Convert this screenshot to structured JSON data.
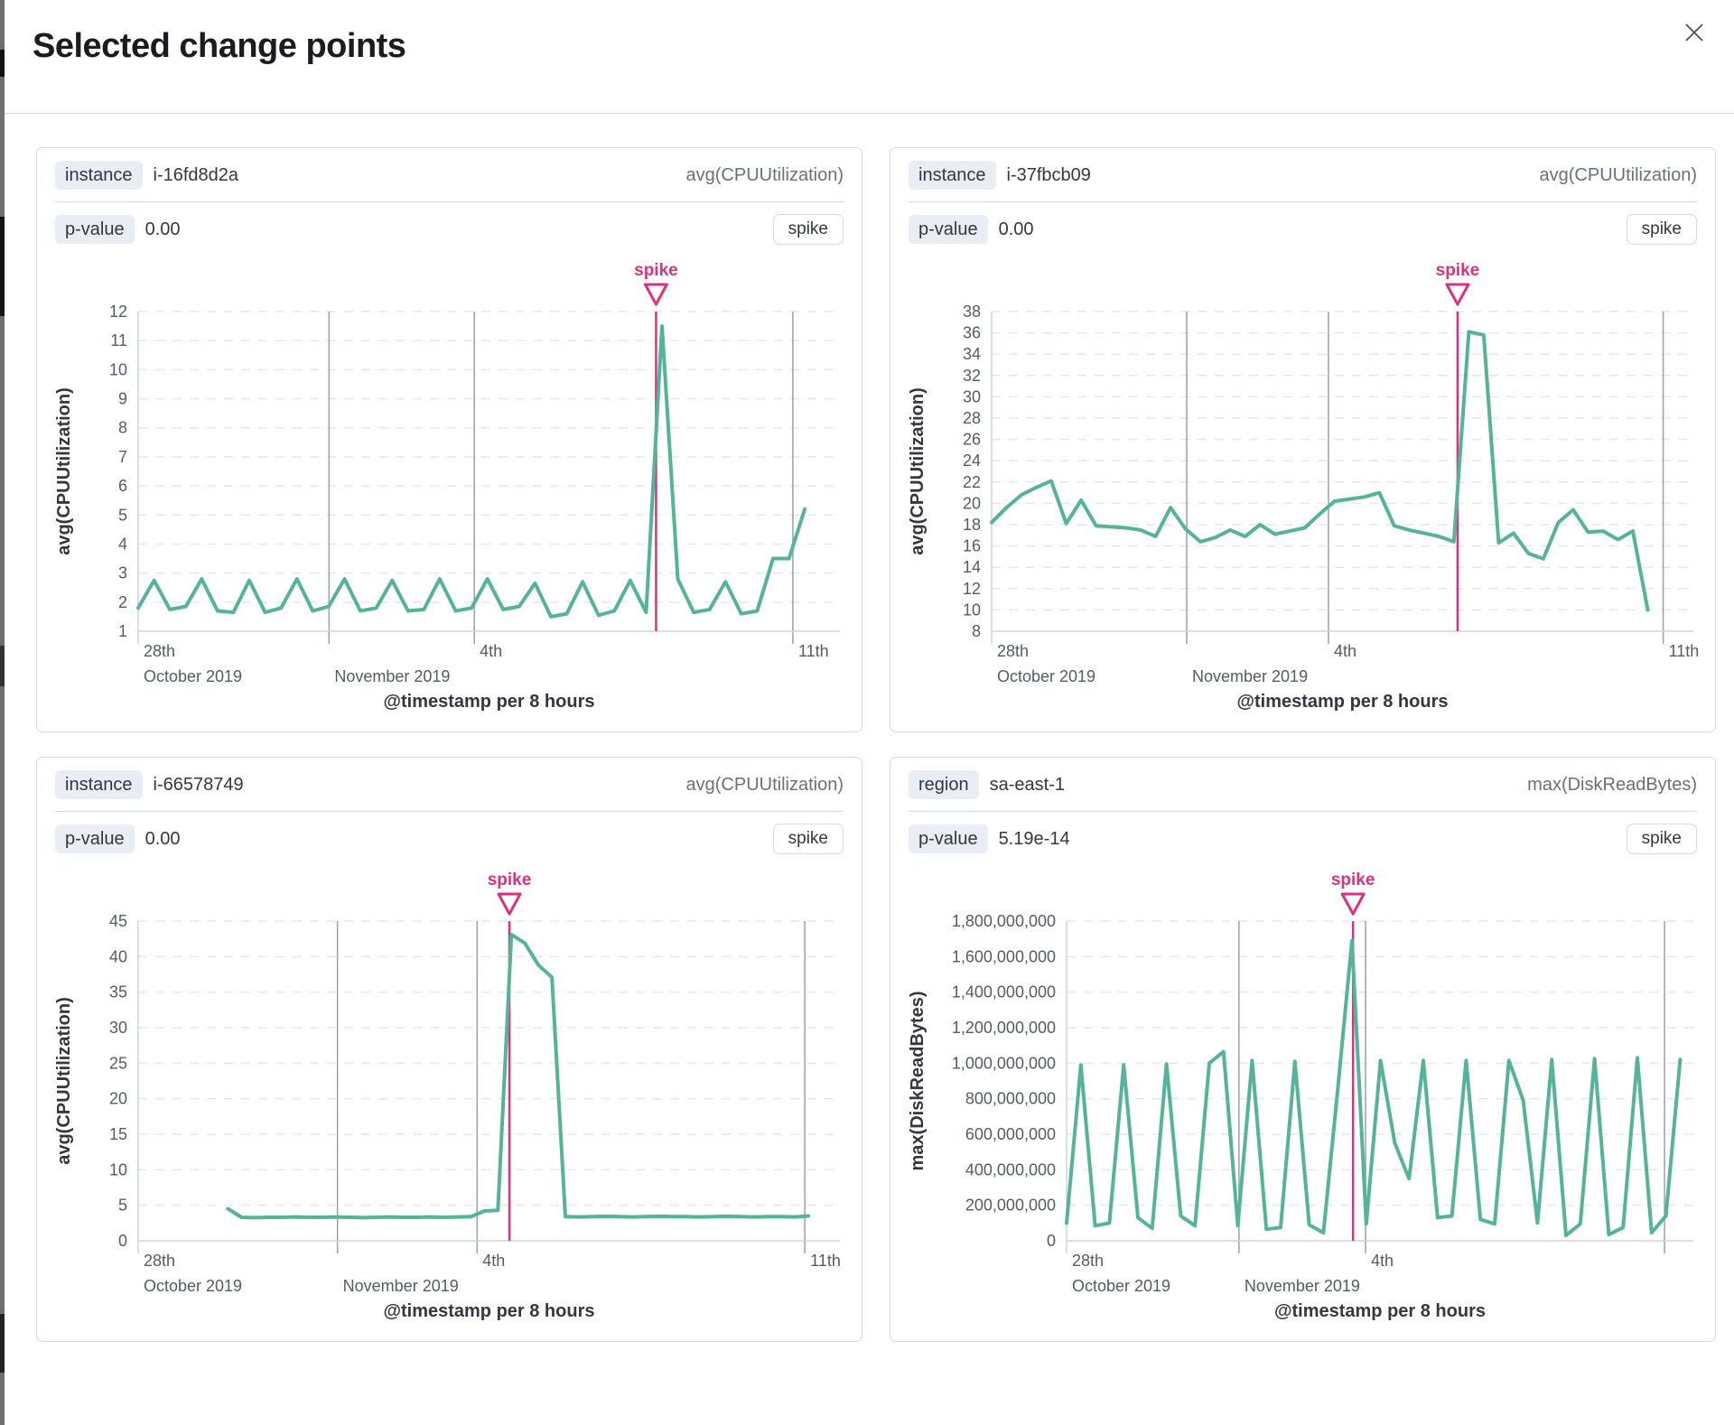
{
  "page": {
    "title": "Selected change points"
  },
  "colors": {
    "series_green": "#54b399",
    "annotation_pink": "#de317d",
    "grid_dashed": "#e3e7f0",
    "grid_date": "#9aa0aa",
    "axis_line": "#ced4df",
    "tick_text": "#555b66"
  },
  "chart_data": [
    {
      "type": "line",
      "key_label": "instance",
      "key_value": "i-16fd8d2a",
      "metric": "avg(CPUUtilization)",
      "p_label": "p-value",
      "p_value": "0.00",
      "change_type_badge": "spike",
      "annotation_label": "spike",
      "xlabel": "@timestamp per 8 hours",
      "ylabel": "avg(CPUUtilization)",
      "ylim": [
        1,
        12
      ],
      "ytick_step": 1,
      "y_grouped": false,
      "spike_frac": 0.738,
      "data_start_frac": 0.0,
      "data_end_frac": 0.95,
      "xticks": [
        {
          "frac": 0.0,
          "line1": "28th",
          "line2": "October 2019",
          "grid": false
        },
        {
          "frac": 0.272,
          "line1": "",
          "line2": "November 2019",
          "grid": true
        },
        {
          "frac": 0.479,
          "line1": "4th",
          "line2": "",
          "grid": true
        },
        {
          "frac": 0.933,
          "line1": "11th",
          "line2": "",
          "grid": true
        }
      ],
      "values": [
        1.8,
        2.75,
        1.75,
        1.85,
        2.8,
        1.7,
        1.65,
        2.75,
        1.65,
        1.8,
        2.8,
        1.7,
        1.85,
        2.8,
        1.7,
        1.8,
        2.75,
        1.7,
        1.75,
        2.8,
        1.7,
        1.8,
        2.8,
        1.75,
        1.85,
        2.65,
        1.5,
        1.6,
        2.7,
        1.55,
        1.7,
        2.75,
        1.65,
        11.5,
        2.8,
        1.65,
        1.75,
        2.7,
        1.6,
        1.7,
        3.5,
        3.5,
        5.2
      ]
    },
    {
      "type": "line",
      "key_label": "instance",
      "key_value": "i-37fbcb09",
      "metric": "avg(CPUUtilization)",
      "p_label": "p-value",
      "p_value": "0.00",
      "change_type_badge": "spike",
      "annotation_label": "spike",
      "xlabel": "@timestamp per 8 hours",
      "ylabel": "avg(CPUUtilization)",
      "ylim": [
        8,
        38
      ],
      "ytick_step": 2,
      "y_grouped": false,
      "spike_frac": 0.664,
      "data_start_frac": 0.0,
      "data_end_frac": 0.935,
      "xticks": [
        {
          "frac": 0.0,
          "line1": "28th",
          "line2": "October 2019",
          "grid": false
        },
        {
          "frac": 0.278,
          "line1": "",
          "line2": "November 2019",
          "grid": true
        },
        {
          "frac": 0.48,
          "line1": "4th",
          "line2": "",
          "grid": true
        },
        {
          "frac": 0.957,
          "line1": "11th",
          "line2": "",
          "grid": true
        }
      ],
      "values": [
        18.2,
        19.6,
        20.8,
        21.5,
        22.1,
        18.1,
        20.3,
        17.9,
        17.8,
        17.7,
        17.5,
        16.9,
        19.6,
        17.6,
        16.4,
        16.8,
        17.5,
        16.9,
        18.0,
        17.1,
        17.4,
        17.7,
        19.0,
        20.2,
        20.4,
        20.6,
        21.0,
        17.9,
        17.5,
        17.2,
        16.9,
        16.4,
        36.1,
        35.8,
        16.3,
        17.2,
        15.3,
        14.8,
        18.2,
        19.4,
        17.3,
        17.4,
        16.6,
        17.4,
        10.0
      ]
    },
    {
      "type": "line",
      "key_label": "instance",
      "key_value": "i-66578749",
      "metric": "avg(CPUUtilization)",
      "p_label": "p-value",
      "p_value": "0.00",
      "change_type_badge": "spike",
      "annotation_label": "spike",
      "xlabel": "@timestamp per 8 hours",
      "ylabel": "avg(CPUUtilization)",
      "ylim": [
        0,
        45
      ],
      "ytick_step": 5,
      "y_grouped": false,
      "spike_frac": 0.529,
      "data_start_frac": 0.128,
      "data_end_frac": 0.955,
      "xticks": [
        {
          "frac": 0.0,
          "line1": "28th",
          "line2": "October 2019",
          "grid": false
        },
        {
          "frac": 0.284,
          "line1": "",
          "line2": "November 2019",
          "grid": true
        },
        {
          "frac": 0.483,
          "line1": "4th",
          "line2": "",
          "grid": true
        },
        {
          "frac": 0.95,
          "line1": "11th",
          "line2": "",
          "grid": true
        }
      ],
      "values": [
        4.5,
        3.3,
        3.25,
        3.3,
        3.3,
        3.35,
        3.3,
        3.3,
        3.35,
        3.3,
        3.25,
        3.3,
        3.35,
        3.3,
        3.3,
        3.35,
        3.3,
        3.35,
        3.4,
        4.2,
        4.3,
        43.1,
        41.9,
        38.8,
        37.1,
        3.4,
        3.35,
        3.4,
        3.45,
        3.4,
        3.35,
        3.4,
        3.45,
        3.4,
        3.4,
        3.35,
        3.4,
        3.45,
        3.4,
        3.35,
        3.4,
        3.4,
        3.35,
        3.5
      ]
    },
    {
      "type": "line",
      "key_label": "region",
      "key_value": "sa-east-1",
      "metric": "max(DiskReadBytes)",
      "p_label": "p-value",
      "p_value": "5.19e-14",
      "change_type_badge": "spike",
      "annotation_label": "spike",
      "xlabel": "@timestamp per 8 hours",
      "ylabel": "max(DiskReadBytes)",
      "ylim": [
        0,
        1800000000
      ],
      "ytick_step": 200000000,
      "y_grouped": true,
      "spike_frac": 0.457,
      "data_start_frac": 0.0,
      "data_end_frac": 0.979,
      "xticks": [
        {
          "frac": 0.0,
          "line1": "28th",
          "line2": "October 2019",
          "grid": false
        },
        {
          "frac": 0.275,
          "line1": "",
          "line2": "November 2019",
          "grid": true
        },
        {
          "frac": 0.477,
          "line1": "4th",
          "line2": "",
          "grid": true
        },
        {
          "frac": 0.954,
          "line1": "",
          "line2": "",
          "grid": true
        }
      ],
      "values": [
        100000000,
        990000000,
        85000000,
        100000000,
        990000000,
        130000000,
        70000000,
        995000000,
        140000000,
        85000000,
        1000000000,
        1065000000,
        85000000,
        1015000000,
        65000000,
        75000000,
        1010000000,
        90000000,
        45000000,
        850000000,
        1690000000,
        95000000,
        1015000000,
        550000000,
        350000000,
        1015000000,
        130000000,
        140000000,
        1015000000,
        120000000,
        95000000,
        1015000000,
        790000000,
        100000000,
        1020000000,
        30000000,
        95000000,
        1025000000,
        35000000,
        75000000,
        1030000000,
        45000000,
        140000000,
        1020000000
      ]
    }
  ]
}
